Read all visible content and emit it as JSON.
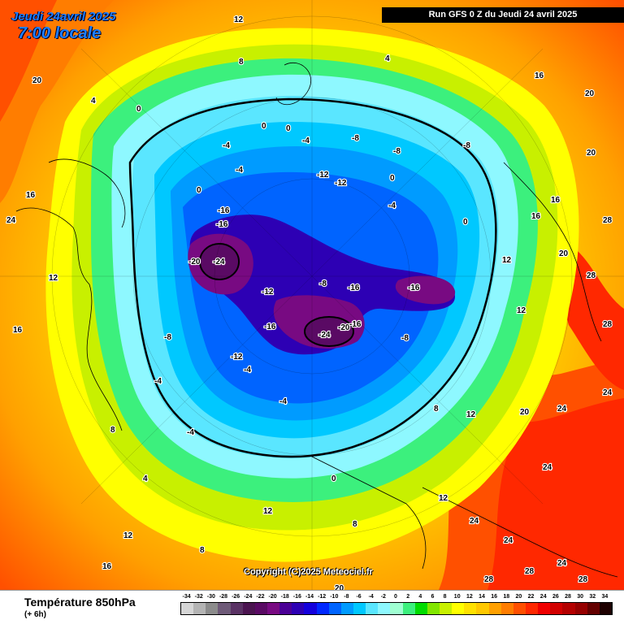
{
  "header": {
    "date": "Jeudi 24avril 2025",
    "local_time": "7:00 locale",
    "run_info": "Run GFS 0 Z du Jeudi 24 avril 2025"
  },
  "copyright": "Copyright (C)2025 Meteociel.fr",
  "legend": {
    "title": "Température 850hPa",
    "subtitle": "(+ 6h)",
    "ticks": [
      "-34",
      "-32",
      "-30",
      "-28",
      "-26",
      "-24",
      "-22",
      "-20",
      "-18",
      "-16",
      "-14",
      "-12",
      "-10",
      "-8",
      "-6",
      "-4",
      "-2",
      "0",
      "2",
      "4",
      "6",
      "8",
      "10",
      "12",
      "14",
      "16",
      "18",
      "20",
      "22",
      "24",
      "26",
      "28",
      "30",
      "32",
      "34"
    ],
    "colors": [
      "#d6d6d6",
      "#b4b4b4",
      "#8c8c8c",
      "#6e5a78",
      "#5a3264",
      "#4b1450",
      "#5a0a64",
      "#780a82",
      "#4b0096",
      "#2d00b4",
      "#1400dc",
      "#0028ff",
      "#0064ff",
      "#009bff",
      "#00c8ff",
      "#5ae6ff",
      "#8ef8ff",
      "#a0ffd2",
      "#3cf07d",
      "#00dc00",
      "#82e600",
      "#c8f000",
      "#ffff00",
      "#ffe100",
      "#ffc800",
      "#ffa000",
      "#ff7d00",
      "#ff5000",
      "#ff2800",
      "#f00000",
      "#d20000",
      "#b40000",
      "#960000",
      "#640000",
      "#1e0000"
    ]
  },
  "map": {
    "labels": [
      "-24",
      "-20",
      "-24",
      "-20",
      "-16",
      "-16",
      "-16",
      "-16",
      "-12",
      "-12",
      "-12",
      "-12",
      "-16",
      "-16",
      "-8",
      "-8",
      "-8",
      "-8",
      "-8",
      "-8",
      "-4",
      "-4",
      "-4",
      "-4",
      "-4",
      "-4",
      "-4",
      "-4",
      "0",
      "0",
      "0",
      "0",
      "0",
      "0",
      "0",
      "4",
      "4",
      "4",
      "8",
      "8",
      "8",
      "8",
      "8",
      "12",
      "12",
      "12",
      "12",
      "12",
      "12",
      "12",
      "12",
      "16",
      "16",
      "16",
      "16",
      "16",
      "16",
      "20",
      "20",
      "20",
      "20",
      "20",
      "20",
      "24",
      "24",
      "24",
      "24",
      "24",
      "24",
      "24",
      "28",
      "28",
      "28",
      "28",
      "28",
      "28"
    ]
  }
}
